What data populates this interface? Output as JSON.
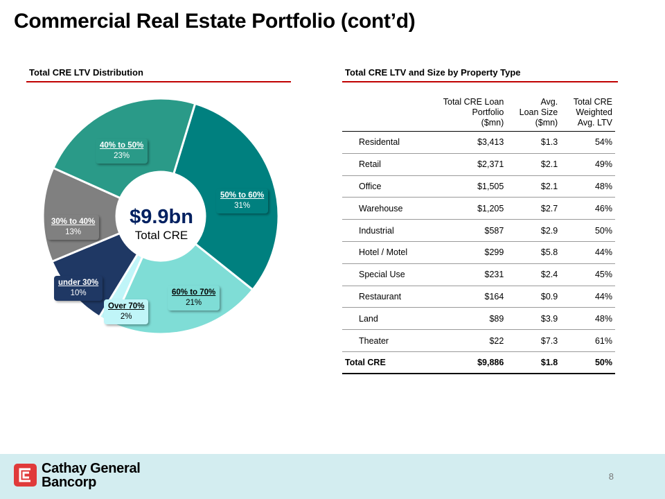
{
  "title": "Commercial Real Estate Portfolio (cont’d)",
  "left_section": {
    "heading": "Total CRE LTV Distribution"
  },
  "right_section": {
    "heading": "Total CRE LTV and Size by Property Type"
  },
  "chart_data": {
    "type": "pie",
    "donut": true,
    "center_value": "$9.9bn",
    "center_label": "Total CRE",
    "slices": [
      {
        "label": "50% to 60%",
        "value": 31,
        "display": "31%",
        "color": "#00807f"
      },
      {
        "label": "60% to 70%",
        "value": 21,
        "display": "21%",
        "color": "#7fddd6"
      },
      {
        "label": "Over 70%",
        "value": 2,
        "display": "2%",
        "color": "#c0f5f8"
      },
      {
        "label": "under 30%",
        "value": 10,
        "display": "10%",
        "color": "#1f3864"
      },
      {
        "label": "30% to 40%",
        "value": 13,
        "display": "13%",
        "color": "#808080"
      },
      {
        "label": "40% to 50%",
        "value": 23,
        "display": "23%",
        "color": "#2a9a88"
      }
    ]
  },
  "table": {
    "headers": [
      "",
      "Total CRE Loan Portfolio ($mn)",
      "Avg. Loan Size ($mn)",
      "Total CRE Weighted Avg. LTV"
    ],
    "header_lines": [
      [
        ""
      ],
      [
        "Total CRE Loan",
        "Portfolio",
        "($mn)"
      ],
      [
        "Avg.",
        "Loan Size",
        "($mn)"
      ],
      [
        "Total CRE",
        "Weighted",
        "Avg. LTV"
      ]
    ],
    "rows": [
      [
        "Residental",
        "$3,413",
        "$1.3",
        "54%"
      ],
      [
        "Retail",
        "$2,371",
        "$2.1",
        "49%"
      ],
      [
        "Office",
        "$1,505",
        "$2.1",
        "48%"
      ],
      [
        "Warehouse",
        "$1,205",
        "$2.7",
        "46%"
      ],
      [
        "Industrial",
        "$587",
        "$2.9",
        "50%"
      ],
      [
        "Hotel / Motel",
        "$299",
        "$5.8",
        "44%"
      ],
      [
        "Special Use",
        "$231",
        "$2.4",
        "45%"
      ],
      [
        "Restaurant",
        "$164",
        "$0.9",
        "44%"
      ],
      [
        "Land",
        "$89",
        "$3.9",
        "48%"
      ],
      [
        "Theater",
        "$22",
        "$7.3",
        "61%"
      ]
    ],
    "total": [
      "Total CRE",
      "$9,886",
      "$1.8",
      "50%"
    ]
  },
  "footer": {
    "brand": "Cathay General Bancorp",
    "brand_line1": "Cathay General",
    "brand_line2": "Bancorp",
    "page_number": "8"
  }
}
